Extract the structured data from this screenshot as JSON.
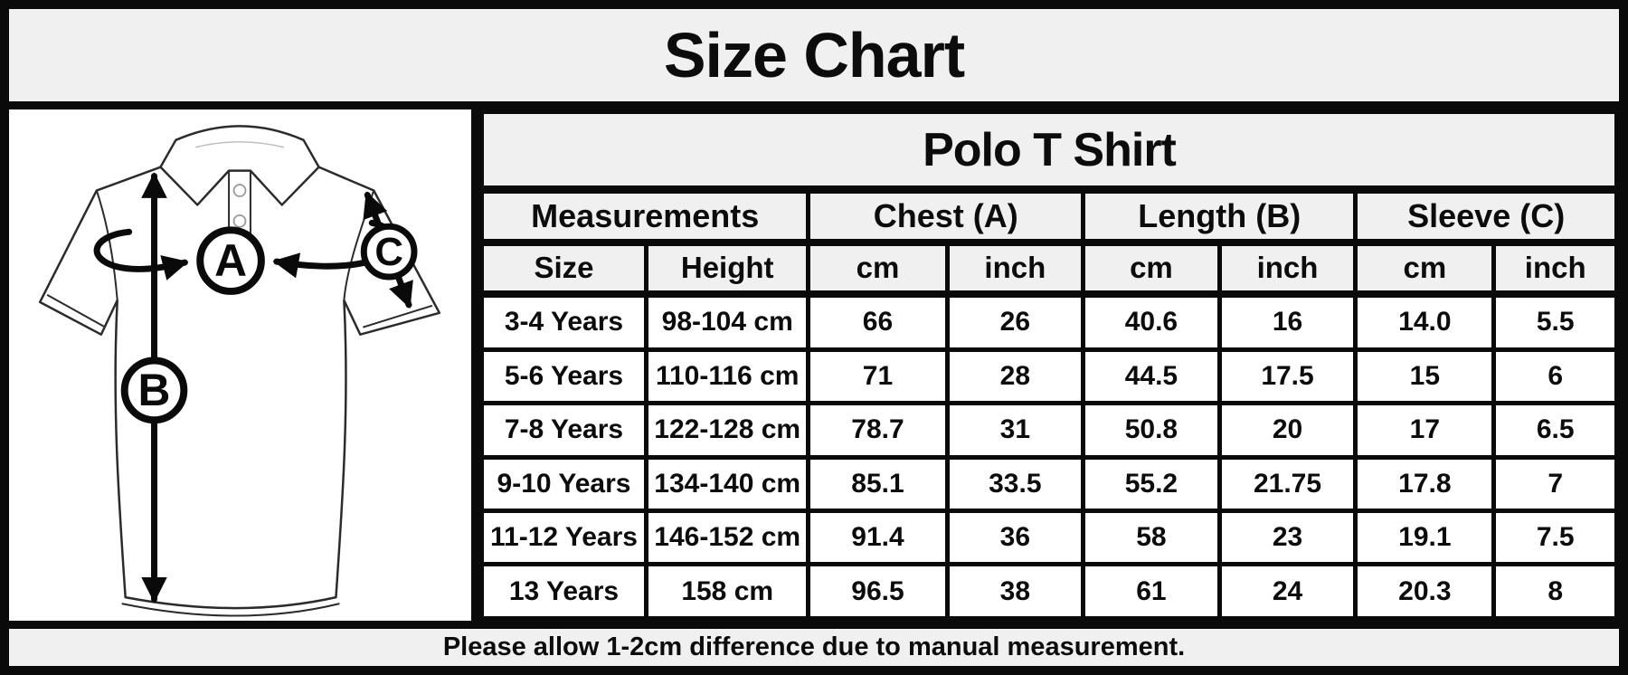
{
  "title": "Size Chart",
  "footer_note": "Please allow 1-2cm difference due to manual measurement.",
  "diagram": {
    "description": "polo shirt with measurement arrows",
    "labels": [
      "A",
      "B",
      "C"
    ]
  },
  "colors": {
    "header_bg": "#f0f0f0",
    "cell_bg": "#ffffff",
    "border": "#0a0a0a",
    "text": "#0c0c0c"
  },
  "chart_data": {
    "type": "table",
    "title": "Size Chart",
    "product": "Polo T Shirt",
    "group_headers": [
      {
        "label": "Measurements",
        "colspan": 2
      },
      {
        "label": "Chest (A)",
        "colspan": 2
      },
      {
        "label": "Length (B)",
        "colspan": 2
      },
      {
        "label": "Sleeve (C)",
        "colspan": 2
      }
    ],
    "sub_headers": [
      "Size",
      "Height",
      "cm",
      "inch",
      "cm",
      "inch",
      "cm",
      "inch"
    ],
    "rows": [
      [
        "3-4 Years",
        "98-104 cm",
        "66",
        "26",
        "40.6",
        "16",
        "14.0",
        "5.5"
      ],
      [
        "5-6 Years",
        "110-116 cm",
        "71",
        "28",
        "44.5",
        "17.5",
        "15",
        "6"
      ],
      [
        "7-8 Years",
        "122-128 cm",
        "78.7",
        "31",
        "50.8",
        "20",
        "17",
        "6.5"
      ],
      [
        "9-10 Years",
        "134-140 cm",
        "85.1",
        "33.5",
        "55.2",
        "21.75",
        "17.8",
        "7"
      ],
      [
        "11-12 Years",
        "146-152 cm",
        "91.4",
        "36",
        "58",
        "23",
        "19.1",
        "7.5"
      ],
      [
        "13 Years",
        "158 cm",
        "96.5",
        "38",
        "61",
        "24",
        "20.3",
        "8"
      ]
    ],
    "note": "Please allow 1-2cm difference due to manual measurement."
  }
}
